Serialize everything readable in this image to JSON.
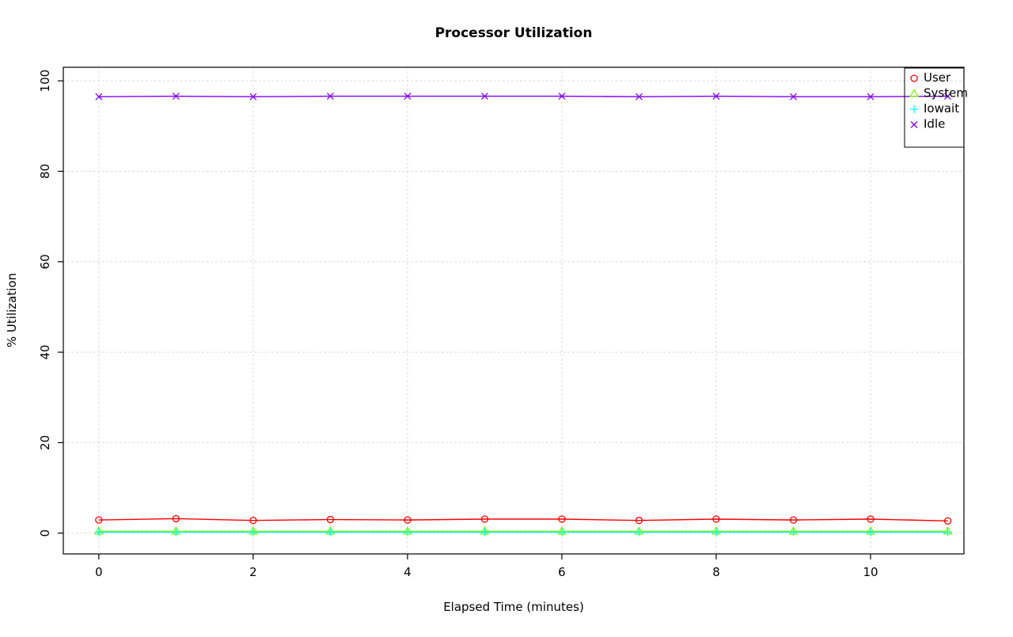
{
  "figure": {
    "background": "#ffffff",
    "border_color": "#000000"
  },
  "chart_data": {
    "type": "line",
    "title": "Processor Utilization",
    "xlabel": "Elapsed Time (minutes)",
    "ylabel": "% Utilization",
    "x": [
      0,
      1,
      2,
      3,
      4,
      5,
      6,
      7,
      8,
      9,
      10,
      11
    ],
    "xlim": [
      -0.46,
      11.21
    ],
    "ylim": [
      -4.6,
      103
    ],
    "xticks": [
      0,
      2,
      4,
      6,
      8,
      10
    ],
    "yticks": [
      0,
      20,
      40,
      60,
      80,
      100
    ],
    "grid": {
      "visible": true,
      "style": "dotted",
      "color": "#d3d3d3"
    },
    "series": [
      {
        "name": "User",
        "color": "#FF0000",
        "marker": "circle",
        "values": [
          2.9,
          3.2,
          2.8,
          3.0,
          2.9,
          3.1,
          3.1,
          2.8,
          3.1,
          2.9,
          3.1,
          2.7
        ]
      },
      {
        "name": "System",
        "color": "#80FF00",
        "marker": "triangle",
        "values": [
          0.4,
          0.4,
          0.4,
          0.4,
          0.4,
          0.4,
          0.4,
          0.4,
          0.4,
          0.4,
          0.4,
          0.4
        ]
      },
      {
        "name": "Iowait",
        "color": "#00FFFF",
        "marker": "plus",
        "values": [
          0.2,
          0.2,
          0.2,
          0.2,
          0.2,
          0.2,
          0.2,
          0.2,
          0.2,
          0.2,
          0.2,
          0.2
        ]
      },
      {
        "name": "Idle",
        "color": "#8000FF",
        "marker": "x",
        "values": [
          96.5,
          96.6,
          96.5,
          96.6,
          96.6,
          96.6,
          96.6,
          96.5,
          96.6,
          96.5,
          96.5,
          96.6
        ]
      }
    ],
    "legend": {
      "position": "top-right",
      "entries": [
        "User",
        "System",
        "Iowait",
        "Idle"
      ]
    }
  }
}
